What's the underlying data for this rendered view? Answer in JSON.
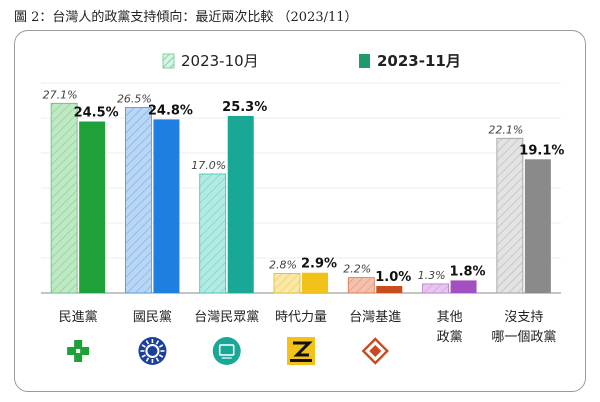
{
  "title": "圖 2：台灣人的政黨支持傾向：最近兩次比較 （2023/11）",
  "chart_data": {
    "type": "bar",
    "categories": [
      "民進黨",
      "國民黨",
      "台灣民眾黨",
      "時代力量",
      "台灣基進",
      "其他\n政黨",
      "沒支持\n哪一個政黨"
    ],
    "series": [
      {
        "name": "2023-10月",
        "values": [
          27.1,
          26.5,
          17.0,
          2.8,
          2.2,
          1.3,
          22.1
        ],
        "style": "hatched-light"
      },
      {
        "name": "2023-11月",
        "values": [
          24.5,
          24.8,
          25.3,
          2.9,
          1.0,
          1.8,
          19.1
        ],
        "style": "solid"
      }
    ],
    "data_labels": {
      "2023-10月": [
        "27.1%",
        "26.5%",
        "17.0%",
        "2.8%",
        "2.2%",
        "1.3%",
        "22.1%"
      ],
      "2023-11月": [
        "24.5%",
        "24.8%",
        "25.3%",
        "2.9%",
        "1.0%",
        "1.8%",
        "19.1%"
      ]
    },
    "ylim": [
      0,
      30
    ],
    "legend_position": "top-center",
    "colors": {
      "old": [
        "#bfe9c4",
        "#b9d6f5",
        "#b3ebe3",
        "#fbe8a6",
        "#f3c1ad",
        "#e8c5f0",
        "#e3e3e3"
      ],
      "old_hatch": [
        "#5cbf6d",
        "#4d8fd6",
        "#41bfae",
        "#e2b830",
        "#d6764a",
        "#b77dc8",
        "#9a9a9a"
      ],
      "new": [
        "#1fa13a",
        "#1f7fe0",
        "#1aa896",
        "#f2c21a",
        "#c84c1f",
        "#a24fc0",
        "#8a8a8a"
      ]
    }
  },
  "party_icons": [
    "dpp-logo-icon",
    "kmt-logo-icon",
    "tpp-logo-icon",
    "npp-logo-icon",
    "tsp-logo-icon",
    "",
    ""
  ],
  "legend_swatch_colors": {
    "old": "#7fd6a0",
    "new": "#1f9a6a"
  }
}
